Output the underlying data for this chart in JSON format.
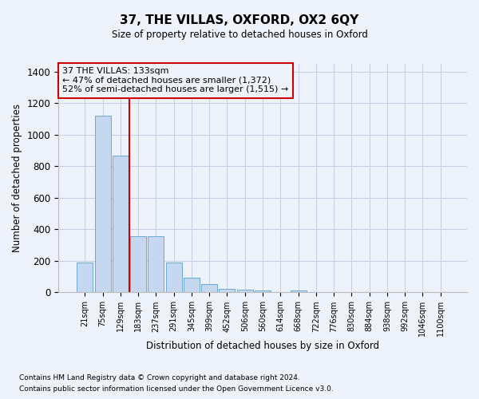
{
  "title": "37, THE VILLAS, OXFORD, OX2 6QY",
  "subtitle": "Size of property relative to detached houses in Oxford",
  "xlabel": "Distribution of detached houses by size in Oxford",
  "ylabel": "Number of detached properties",
  "footnote1": "Contains HM Land Registry data © Crown copyright and database right 2024.",
  "footnote2": "Contains public sector information licensed under the Open Government Licence v3.0.",
  "annotation_title": "37 THE VILLAS: 133sqm",
  "annotation_line1": "← 47% of detached houses are smaller (1,372)",
  "annotation_line2": "52% of semi-detached houses are larger (1,515) →",
  "categories": [
    "21sqm",
    "75sqm",
    "129sqm",
    "183sqm",
    "237sqm",
    "291sqm",
    "345sqm",
    "399sqm",
    "452sqm",
    "506sqm",
    "560sqm",
    "614sqm",
    "668sqm",
    "722sqm",
    "776sqm",
    "830sqm",
    "884sqm",
    "938sqm",
    "992sqm",
    "1046sqm",
    "1100sqm"
  ],
  "values": [
    190,
    1120,
    870,
    355,
    355,
    190,
    95,
    55,
    25,
    20,
    15,
    0,
    15,
    0,
    0,
    0,
    0,
    0,
    0,
    0,
    0
  ],
  "bar_color": "#c5d8f0",
  "bar_edge_color": "#6aaad4",
  "vline_color": "#cc0000",
  "vline_x": 2.5,
  "annotation_box_color": "#cc0000",
  "background_color": "#eef2fb",
  "grid_color": "#c8d0e8",
  "ylim": [
    0,
    1450
  ],
  "yticks": [
    0,
    200,
    400,
    600,
    800,
    1000,
    1200,
    1400
  ]
}
